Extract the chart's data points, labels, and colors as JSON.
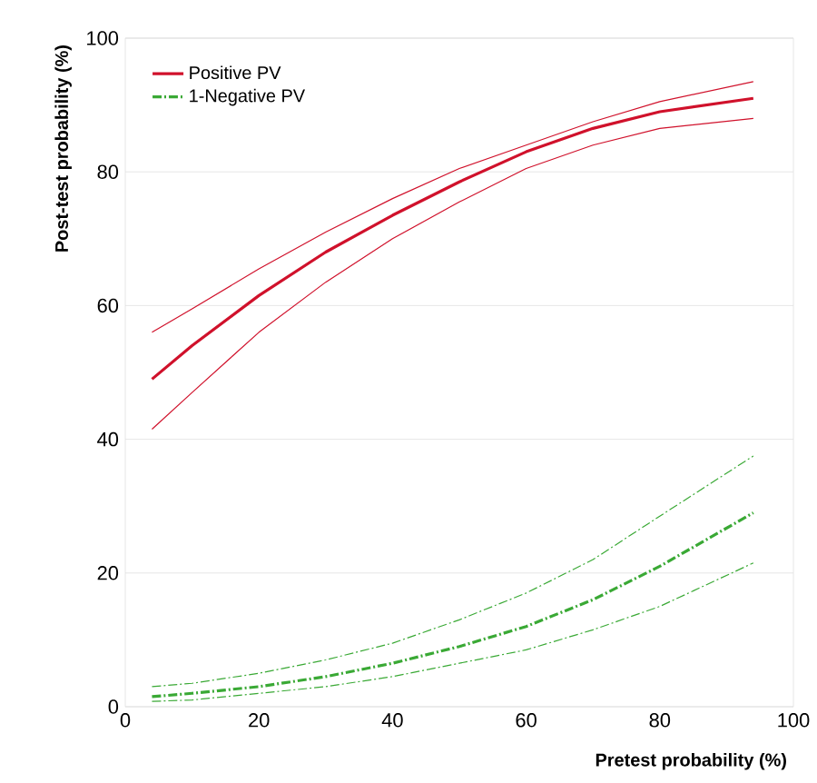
{
  "chart_data": {
    "type": "line",
    "xlabel": "Pretest probability (%)",
    "ylabel": "Post-test probability (%)",
    "x": [
      4,
      10,
      20,
      30,
      40,
      50,
      60,
      70,
      80,
      94
    ],
    "series": [
      {
        "name": "Positive PV",
        "color": "#d0112b",
        "line_style": "solid",
        "values": [
          49,
          54,
          61.5,
          68,
          73.5,
          78.5,
          83,
          86.5,
          89,
          91
        ]
      },
      {
        "color": "#d0112b",
        "line_style": "solid",
        "values": [
          41.5,
          47,
          56,
          63.5,
          70,
          75.5,
          80.5,
          84,
          86.5,
          88
        ]
      },
      {
        "color": "#d0112b",
        "line_style": "solid",
        "values": [
          56,
          59.5,
          65.5,
          71,
          76,
          80.5,
          84,
          87.5,
          90.5,
          93.5
        ]
      },
      {
        "name": "1-Negative PV",
        "color": "#3aa935",
        "line_style": "dashed",
        "values": [
          1.5,
          2,
          3,
          4.5,
          6.5,
          9,
          12,
          16,
          21,
          29
        ]
      },
      {
        "color": "#3aa935",
        "line_style": "dashed",
        "values": [
          0.8,
          1,
          2,
          3,
          4.5,
          6.5,
          8.5,
          11.5,
          15,
          21.5
        ]
      },
      {
        "color": "#3aa935",
        "line_style": "dashed",
        "values": [
          3,
          3.5,
          5,
          7,
          9.5,
          13,
          17,
          22,
          28.5,
          37.5
        ]
      }
    ],
    "xlim": [
      0,
      100
    ],
    "ylim": [
      0,
      100
    ],
    "xticks": [
      0,
      20,
      40,
      60,
      80,
      100
    ],
    "yticks": [
      0,
      20,
      40,
      60,
      80,
      100
    ],
    "grid": "y",
    "legend": "top left",
    "marker": "none"
  }
}
